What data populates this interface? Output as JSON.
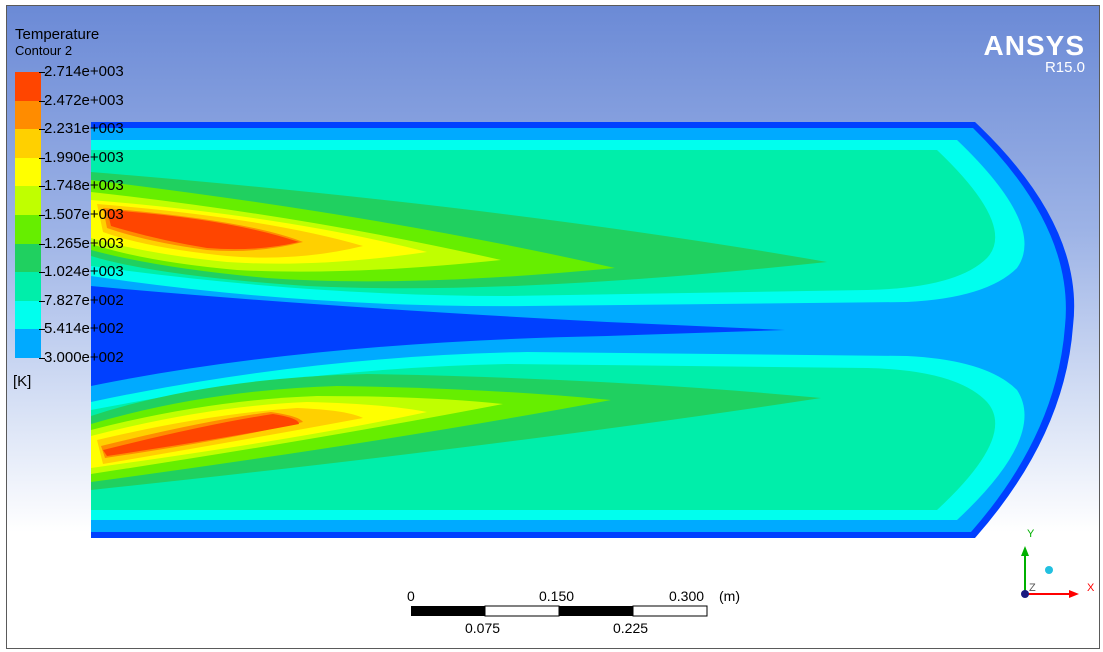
{
  "legend": {
    "title": "Temperature",
    "subtitle": "Contour 2",
    "unit": "[K]",
    "levels": [
      "2.714e+003",
      "2.472e+003",
      "2.231e+003",
      "1.990e+003",
      "1.748e+003",
      "1.507e+003",
      "1.265e+003",
      "1.024e+003",
      "7.827e+002",
      "5.414e+002",
      "3.000e+002"
    ],
    "colors": [
      "#ff4500",
      "#ff8c00",
      "#ffd000",
      "#ffff00",
      "#c0ff00",
      "#66ee00",
      "#20d060",
      "#00eeaa",
      "#00ffee",
      "#00aaff",
      "#0040ff"
    ]
  },
  "brand": {
    "name": "ANSYS",
    "version": "R15.0"
  },
  "scale_bar": {
    "top_labels": [
      "0",
      "0.150",
      "0.300"
    ],
    "bottom_labels": [
      "0.075",
      "0.225"
    ],
    "unit": "(m)"
  },
  "axes": {
    "x": "X",
    "y": "Y",
    "z": "Z"
  },
  "palette": {
    "band0": "#0040ff",
    "band1": "#00aaff",
    "band2": "#00ffee",
    "band3": "#00eeaa",
    "band4": "#20d060",
    "band5": "#66ee00",
    "band6": "#c0ff00",
    "band7": "#ffff00",
    "band8": "#ffd000",
    "band9": "#ff8c00",
    "band10": "#ff4500"
  }
}
